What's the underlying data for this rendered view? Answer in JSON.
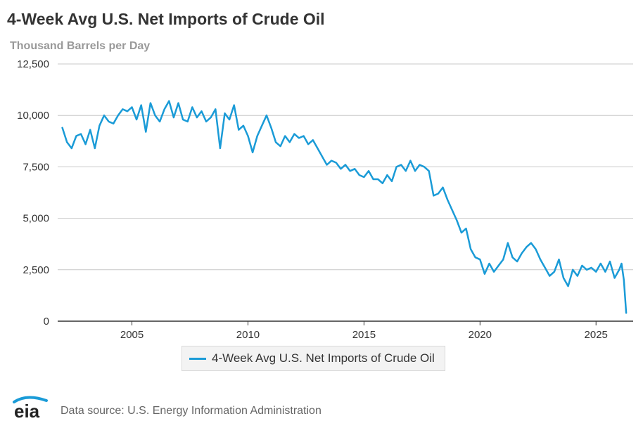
{
  "chart_data": {
    "type": "line",
    "title": "4-Week Avg U.S. Net Imports of Crude Oil",
    "subtitle": "Thousand Barrels per Day",
    "xlabel": "",
    "ylabel": "Thousand Barrels per Day",
    "xlim": [
      2001.8,
      2026.6
    ],
    "ylim": [
      0,
      12500
    ],
    "y_ticks": [
      0,
      2500,
      5000,
      7500,
      10000,
      12500
    ],
    "y_tick_labels": [
      "0",
      "2,500",
      "5,000",
      "7,500",
      "10,000",
      "12,500"
    ],
    "x_ticks": [
      2005,
      2010,
      2015,
      2020,
      2025
    ],
    "x_tick_labels": [
      "2005",
      "2010",
      "2015",
      "2020",
      "2025"
    ],
    "grid": true,
    "legend_position": "bottom-center",
    "series": [
      {
        "name": "4-Week Avg U.S. Net Imports of Crude Oil",
        "color": "#1a9bd7",
        "x": [
          2002.0,
          2002.2,
          2002.4,
          2002.6,
          2002.8,
          2003.0,
          2003.2,
          2003.4,
          2003.6,
          2003.8,
          2004.0,
          2004.2,
          2004.4,
          2004.6,
          2004.8,
          2005.0,
          2005.2,
          2005.4,
          2005.6,
          2005.8,
          2006.0,
          2006.2,
          2006.4,
          2006.6,
          2006.8,
          2007.0,
          2007.2,
          2007.4,
          2007.6,
          2007.8,
          2008.0,
          2008.2,
          2008.4,
          2008.6,
          2008.8,
          2009.0,
          2009.2,
          2009.4,
          2009.6,
          2009.8,
          2010.0,
          2010.2,
          2010.4,
          2010.6,
          2010.8,
          2011.0,
          2011.2,
          2011.4,
          2011.6,
          2011.8,
          2012.0,
          2012.2,
          2012.4,
          2012.6,
          2012.8,
          2013.0,
          2013.2,
          2013.4,
          2013.6,
          2013.8,
          2014.0,
          2014.2,
          2014.4,
          2014.6,
          2014.8,
          2015.0,
          2015.2,
          2015.4,
          2015.6,
          2015.8,
          2016.0,
          2016.2,
          2016.4,
          2016.6,
          2016.8,
          2017.0,
          2017.2,
          2017.4,
          2017.6,
          2017.8,
          2018.0,
          2018.2,
          2018.4,
          2018.6,
          2018.8,
          2019.0,
          2019.2,
          2019.4,
          2019.6,
          2019.8,
          2020.0,
          2020.2,
          2020.4,
          2020.6,
          2020.8,
          2021.0,
          2021.2,
          2021.4,
          2021.6,
          2021.8,
          2022.0,
          2022.2,
          2022.4,
          2022.6,
          2022.8,
          2023.0,
          2023.2,
          2023.4,
          2023.6,
          2023.8,
          2024.0,
          2024.2,
          2024.4,
          2024.6,
          2024.8,
          2025.0,
          2025.2,
          2025.4,
          2025.6,
          2025.8,
          2026.0,
          2026.1,
          2026.2,
          2026.3
        ],
        "values": [
          9400,
          8700,
          8400,
          9000,
          9100,
          8600,
          9300,
          8400,
          9500,
          10000,
          9700,
          9600,
          10000,
          10300,
          10200,
          10400,
          9800,
          10500,
          9200,
          10600,
          10000,
          9700,
          10300,
          10700,
          9900,
          10600,
          9800,
          9700,
          10400,
          9900,
          10200,
          9700,
          9900,
          10300,
          8400,
          10100,
          9800,
          10500,
          9300,
          9500,
          9000,
          8200,
          9000,
          9500,
          10000,
          9400,
          8700,
          8500,
          9000,
          8700,
          9100,
          8900,
          9000,
          8600,
          8800,
          8400,
          8000,
          7600,
          7800,
          7700,
          7400,
          7600,
          7300,
          7400,
          7100,
          7000,
          7300,
          6900,
          6900,
          6700,
          7100,
          6800,
          7500,
          7600,
          7300,
          7800,
          7300,
          7600,
          7500,
          7300,
          6100,
          6200,
          6500,
          5900,
          5400,
          4900,
          4300,
          4500,
          3500,
          3100,
          3000,
          2300,
          2800,
          2400,
          2700,
          3000,
          3800,
          3100,
          2900,
          3300,
          3600,
          3800,
          3500,
          3000,
          2600,
          2200,
          2400,
          3000,
          2100,
          1700,
          2500,
          2200,
          2700,
          2500,
          2600,
          2400,
          2800,
          2400,
          2900,
          2100,
          2500,
          2800,
          2000,
          400
        ]
      }
    ]
  },
  "footer": {
    "logo_text": "eia",
    "source": "Data source: U.S. Energy Information Administration"
  }
}
